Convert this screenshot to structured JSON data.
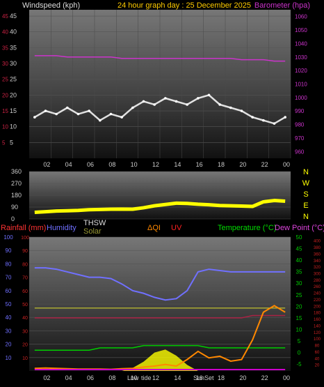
{
  "header": {
    "left_label": "Windspeed (kph)",
    "center_label": "24 hour graph day : 25 December 2025",
    "right_label": "Barometer (hpa)"
  },
  "x_ticks": [
    "02",
    "04",
    "06",
    "08",
    "10",
    "12",
    "14",
    "16",
    "18",
    "20",
    "22",
    "00"
  ],
  "colors": {
    "windspeed": "#ffffff",
    "gust_avg": "#00cc00",
    "barometer": "#cc33cc",
    "direction": "#ffff00",
    "humidity": "#7070ff",
    "temperature": "#00cc00",
    "dewpoint": "#aa2244",
    "thsw": "#aaaa33",
    "solar": "#ffff00",
    "uv": "#ff3300",
    "aqi": "#ff8800",
    "rain": "#cc00cc"
  },
  "chart_data": [
    {
      "type": "line",
      "title": "24 hour graph day : 25 December 2025",
      "ylabel_left": "Windspeed (kph)",
      "ylabel_right": "Barometer (hpa)",
      "x_labels": [
        "02",
        "04",
        "06",
        "08",
        "10",
        "12",
        "14",
        "16",
        "18",
        "20",
        "22",
        "00"
      ],
      "ylim_left": [
        0,
        47
      ],
      "ylim_right": [
        955,
        1065
      ],
      "left_ticks": [
        5,
        10,
        15,
        20,
        25,
        30,
        35,
        40,
        45
      ],
      "left_ticks_red": [
        5,
        10,
        15,
        20,
        25,
        30,
        35,
        40,
        45
      ],
      "right_ticks": [
        960,
        970,
        980,
        990,
        1000,
        1010,
        1020,
        1030,
        1040,
        1050,
        1060
      ],
      "series": [
        {
          "name": "Windspeed (kph)",
          "axis": "left",
          "values": [
            13,
            15,
            14,
            16,
            14,
            15,
            12,
            14,
            13,
            16,
            18,
            17,
            19,
            18,
            17,
            19,
            20,
            17,
            16,
            15,
            13,
            12,
            11,
            13
          ]
        },
        {
          "name": "Barometer (hpa)",
          "axis": "right",
          "values": [
            1031,
            1031,
            1031,
            1030,
            1030,
            1030,
            1030,
            1030,
            1029,
            1029,
            1029,
            1029,
            1029,
            1029,
            1029,
            1029,
            1029,
            1029,
            1029,
            1028,
            1028,
            1028,
            1027,
            1027
          ]
        }
      ]
    },
    {
      "type": "line",
      "ylim": [
        0,
        360
      ],
      "left_ticks": [
        0,
        90,
        180,
        270,
        360
      ],
      "right_labels": [
        "N",
        "W",
        "S",
        "E",
        "N"
      ],
      "series": [
        {
          "name": "Wind direction",
          "values": [
            50,
            55,
            60,
            62,
            65,
            70,
            72,
            74,
            75,
            74,
            85,
            100,
            110,
            120,
            118,
            112,
            108,
            102,
            100,
            98,
            95,
            130,
            140,
            135
          ]
        }
      ]
    },
    {
      "type": "line",
      "labels": {
        "rain": "Rainfall (mm)",
        "humidity": "Humidity",
        "thsw": "THSW",
        "solar": "Solar",
        "aqi": "ΔQI",
        "uv": "UV",
        "temperature": "Temperature (°C)",
        "dewpoint": "Dew Point (°C)"
      },
      "markers": {
        "low": "Low",
        "tide": "tide",
        "sunset": "SunSet"
      },
      "axes": {
        "humidity": {
          "ticks": [
            10,
            20,
            30,
            40,
            50,
            60,
            70,
            80,
            90,
            100
          ]
        },
        "rain": {
          "ticks": [
            10,
            20,
            30,
            40,
            50,
            60,
            70,
            80,
            90,
            100
          ]
        },
        "temperature": {
          "ticks": [
            -5,
            0,
            5,
            10,
            15,
            20,
            25,
            30,
            35,
            40,
            45,
            50
          ]
        },
        "aqi_solar": {
          "ticks": [
            20,
            40,
            60,
            80,
            100,
            120,
            140,
            160,
            180,
            200,
            220,
            240,
            260,
            280,
            300,
            320,
            340,
            360,
            380,
            400
          ]
        }
      },
      "series": [
        {
          "name": "Humidity",
          "values": [
            77,
            77,
            76,
            74,
            72,
            70,
            70,
            69,
            65,
            60,
            58,
            55,
            53,
            54,
            60,
            74,
            76,
            75,
            74,
            74,
            74,
            74,
            74,
            74
          ]
        },
        {
          "name": "Temperature (°C)",
          "values": [
            1,
            1,
            1,
            1,
            1,
            1,
            2,
            2,
            2,
            2,
            3,
            3,
            3,
            3,
            3,
            3,
            2,
            2,
            2,
            2,
            2,
            2,
            2,
            2
          ]
        },
        {
          "name": "Dew Point (°C)",
          "values": [
            15,
            15,
            15,
            15,
            15,
            15,
            15,
            15,
            15,
            15,
            15,
            15,
            15,
            15,
            15,
            15,
            15,
            15,
            15,
            15,
            16,
            16,
            16,
            16
          ]
        },
        {
          "name": "THSW",
          "values": [
            47,
            47,
            47,
            47,
            47,
            47,
            47,
            47,
            47,
            47,
            47,
            47,
            47,
            47,
            47,
            47,
            47,
            47,
            47,
            47,
            47,
            47,
            47,
            47
          ]
        },
        {
          "name": "ΔQI",
          "values": [
            8,
            9,
            8,
            7,
            6,
            6,
            6,
            5,
            7,
            8,
            12,
            15,
            20,
            15,
            35,
            60,
            40,
            45,
            30,
            35,
            95,
            180,
            200,
            180
          ]
        },
        {
          "name": "Solar",
          "values": [
            0,
            0,
            0,
            0,
            0,
            0,
            0,
            0,
            0,
            2,
            6,
            12,
            14,
            10,
            4,
            0,
            0,
            0,
            0,
            0,
            0,
            0,
            0,
            0
          ]
        },
        {
          "name": "Rainfall (mm)",
          "values": [
            0,
            0,
            0,
            0,
            0,
            0,
            0,
            0,
            0,
            0,
            0,
            0,
            0,
            0,
            0,
            0,
            0,
            0,
            0,
            0,
            0,
            0,
            0,
            0
          ]
        }
      ]
    }
  ]
}
